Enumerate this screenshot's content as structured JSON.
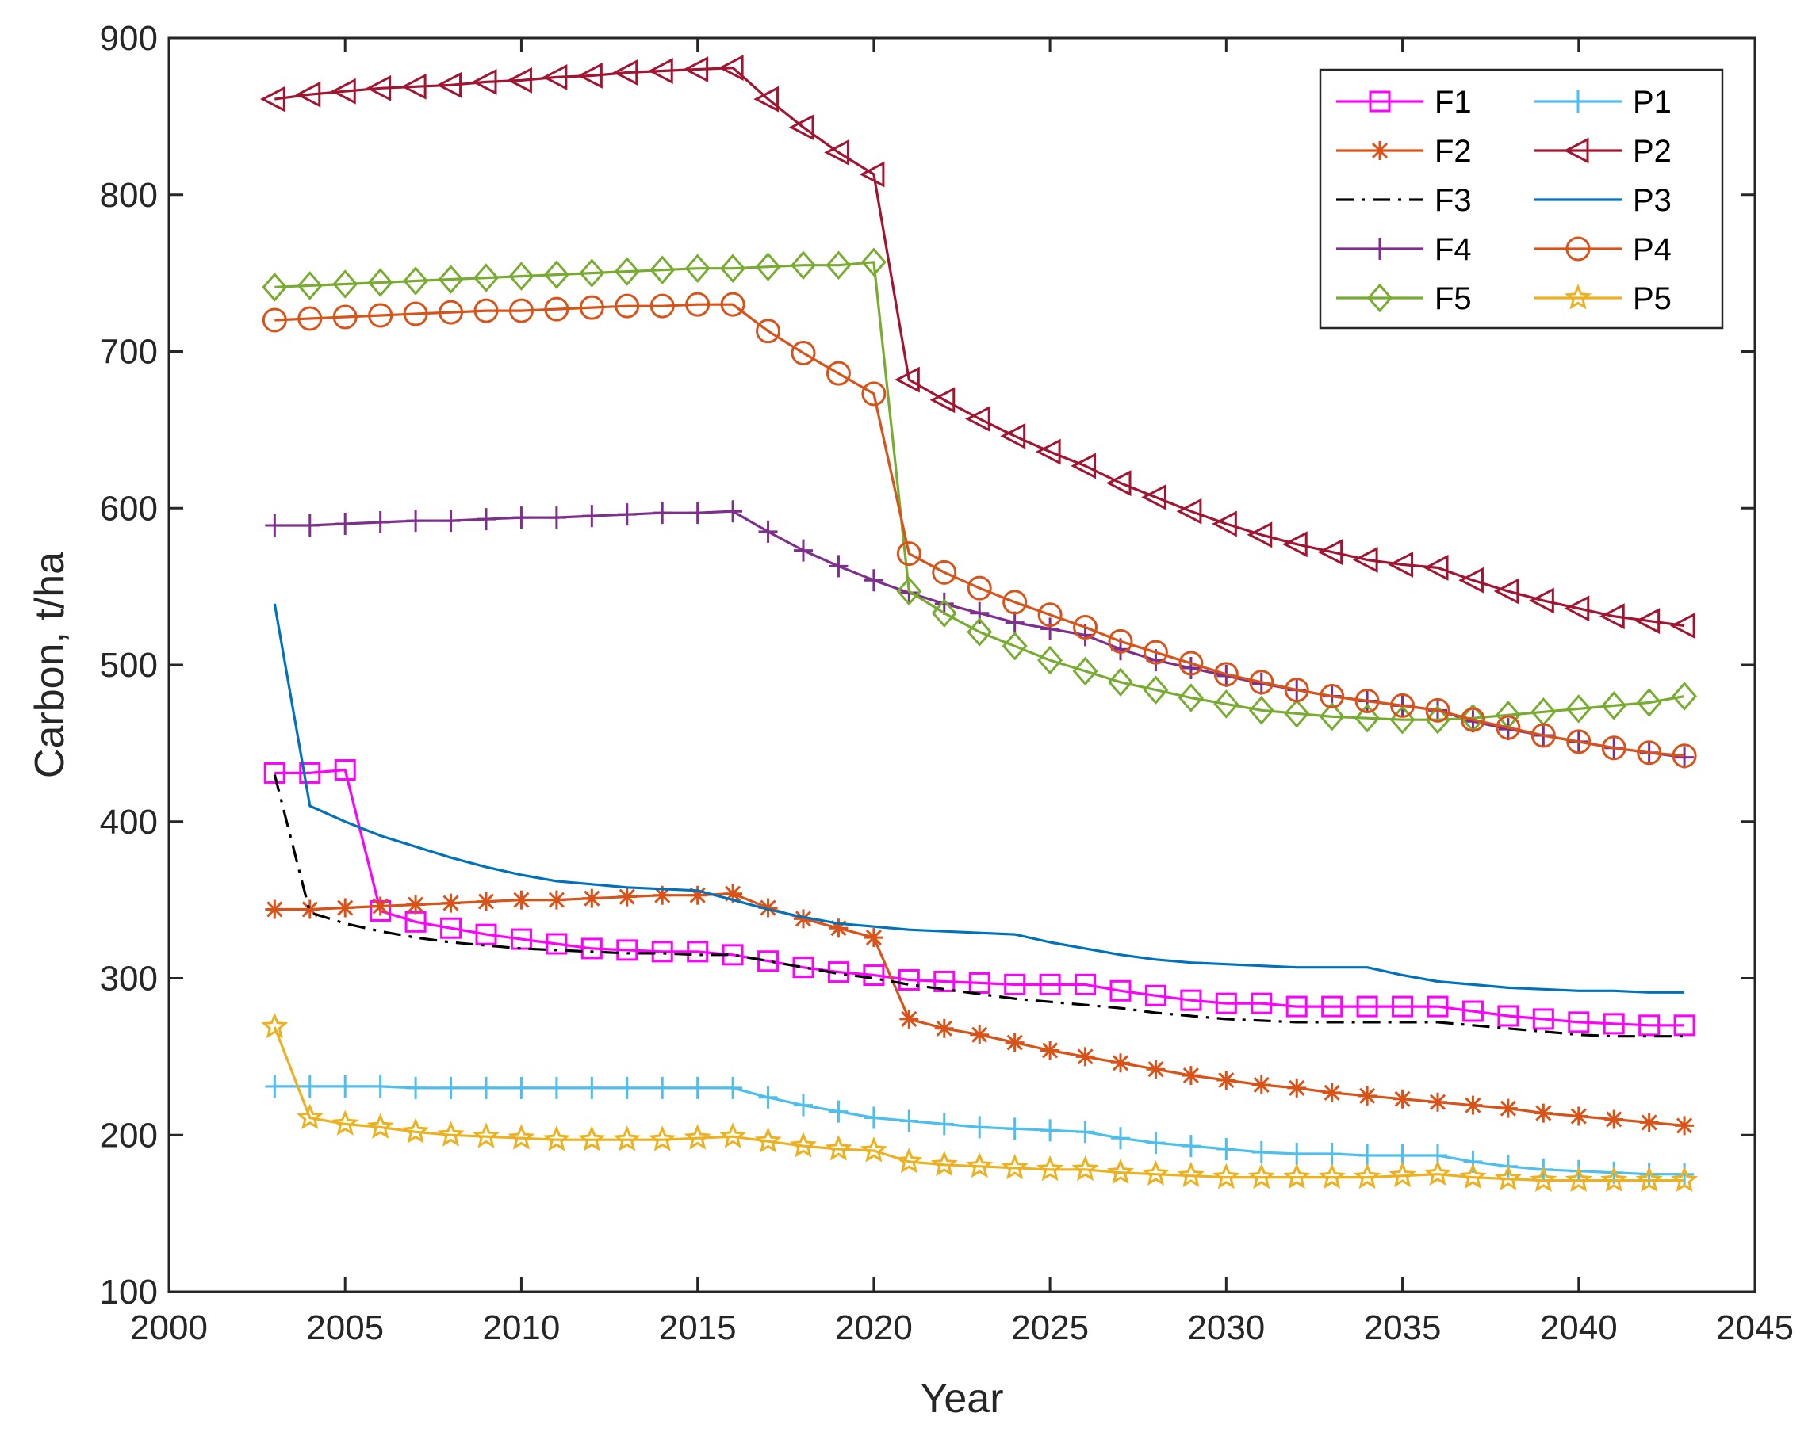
{
  "chart_data": {
    "type": "line",
    "title": "",
    "xlabel": "Year",
    "ylabel": "Carbon, t/ha",
    "xlim": [
      2000,
      2045
    ],
    "ylim": [
      100,
      900
    ],
    "xticks": [
      2000,
      2005,
      2010,
      2015,
      2020,
      2025,
      2030,
      2035,
      2040,
      2045
    ],
    "yticks": [
      100,
      200,
      300,
      400,
      500,
      600,
      700,
      800,
      900
    ],
    "grid": false,
    "legend_location": "top-right",
    "legend_columns": 2,
    "x": [
      2003,
      2004,
      2005,
      2006,
      2007,
      2008,
      2009,
      2010,
      2011,
      2012,
      2013,
      2014,
      2015,
      2016,
      2017,
      2018,
      2019,
      2020,
      2021,
      2022,
      2023,
      2024,
      2025,
      2026,
      2027,
      2028,
      2029,
      2030,
      2031,
      2032,
      2033,
      2034,
      2035,
      2036,
      2037,
      2038,
      2039,
      2040,
      2041,
      2042,
      2043
    ],
    "series": [
      {
        "name": "F1",
        "color": "#ff00ff",
        "marker": "square",
        "dash": "solid",
        "values": [
          431,
          431,
          433,
          343,
          336,
          332,
          328,
          325,
          322,
          319,
          318,
          317,
          317,
          315,
          311,
          307,
          304,
          302,
          299,
          298,
          297,
          296,
          296,
          296,
          292,
          289,
          286,
          284,
          284,
          282,
          282,
          282,
          282,
          282,
          279,
          276,
          274,
          272,
          271,
          270,
          270
        ]
      },
      {
        "name": "F2",
        "color": "#d95319",
        "marker": "asterisk",
        "dash": "solid",
        "values": [
          344,
          344,
          345,
          346,
          347,
          348,
          349,
          350,
          350,
          351,
          352,
          353,
          353,
          354,
          345,
          338,
          332,
          326,
          274,
          268,
          264,
          259,
          254,
          250,
          246,
          242,
          238,
          235,
          232,
          230,
          227,
          225,
          223,
          221,
          219,
          217,
          214,
          212,
          210,
          208,
          206
        ]
      },
      {
        "name": "F3",
        "color": "#000000",
        "marker": "none",
        "dash": "dashdot",
        "values": [
          430,
          342,
          335,
          330,
          326,
          323,
          321,
          319,
          318,
          317,
          316,
          316,
          315,
          315,
          311,
          307,
          303,
          300,
          296,
          293,
          290,
          287,
          285,
          283,
          281,
          278,
          276,
          274,
          273,
          272,
          272,
          272,
          272,
          272,
          270,
          268,
          266,
          264,
          263,
          263,
          263
        ]
      },
      {
        "name": "F4",
        "color": "#7e2f8e",
        "marker": "plus",
        "dash": "solid",
        "values": [
          589,
          589,
          590,
          591,
          592,
          592,
          593,
          594,
          594,
          595,
          596,
          597,
          597,
          598,
          585,
          573,
          563,
          554,
          546,
          539,
          533,
          527,
          523,
          519,
          510,
          503,
          498,
          493,
          488,
          484,
          480,
          477,
          474,
          471,
          464,
          459,
          455,
          451,
          447,
          444,
          441
        ]
      },
      {
        "name": "F5",
        "color": "#77ac30",
        "marker": "diamond",
        "dash": "solid",
        "values": [
          741,
          742,
          743,
          744,
          745,
          746,
          747,
          748,
          749,
          750,
          751,
          752,
          753,
          753,
          754,
          755,
          755,
          757,
          547,
          533,
          521,
          512,
          503,
          496,
          489,
          484,
          479,
          475,
          471,
          469,
          467,
          466,
          465,
          465,
          466,
          468,
          470,
          472,
          474,
          476,
          480
        ]
      },
      {
        "name": "P1",
        "color": "#4dbeee",
        "marker": "plus",
        "dash": "solid",
        "values": [
          231,
          231,
          231,
          231,
          230,
          230,
          230,
          230,
          230,
          230,
          230,
          230,
          230,
          230,
          224,
          219,
          215,
          211,
          209,
          207,
          205,
          204,
          203,
          202,
          198,
          195,
          193,
          191,
          189,
          188,
          188,
          187,
          187,
          187,
          183,
          180,
          178,
          177,
          176,
          175,
          175
        ]
      },
      {
        "name": "P2",
        "color": "#a2142f",
        "marker": "triangle-left",
        "dash": "solid",
        "values": [
          861,
          864,
          866,
          868,
          869,
          870,
          872,
          873,
          875,
          876,
          878,
          879,
          880,
          881,
          861,
          843,
          827,
          813,
          682,
          669,
          657,
          646,
          636,
          627,
          616,
          607,
          598,
          590,
          583,
          577,
          572,
          567,
          564,
          562,
          554,
          547,
          541,
          536,
          531,
          528,
          525
        ]
      },
      {
        "name": "P3",
        "color": "#0072bd",
        "marker": "none",
        "dash": "solid",
        "values": [
          539,
          410,
          400,
          391,
          384,
          377,
          371,
          366,
          362,
          360,
          358,
          357,
          356,
          350,
          344,
          339,
          335,
          333,
          331,
          330,
          329,
          328,
          323,
          319,
          315,
          312,
          310,
          309,
          308,
          307,
          307,
          307,
          302,
          298,
          296,
          294,
          293,
          292,
          292,
          291,
          291
        ]
      },
      {
        "name": "P4",
        "color": "#d95319",
        "marker": "circle",
        "dash": "solid",
        "values": [
          720,
          721,
          722,
          723,
          724,
          725,
          726,
          726,
          727,
          728,
          729,
          729,
          730,
          730,
          713,
          699,
          686,
          673,
          571,
          559,
          549,
          540,
          532,
          524,
          515,
          508,
          501,
          494,
          489,
          484,
          480,
          477,
          474,
          471,
          465,
          460,
          455,
          451,
          447,
          444,
          442
        ]
      },
      {
        "name": "P5",
        "color": "#edb120",
        "marker": "star",
        "dash": "solid",
        "values": [
          269,
          211,
          207,
          205,
          202,
          200,
          199,
          198,
          197,
          197,
          197,
          197,
          198,
          199,
          196,
          193,
          191,
          190,
          183,
          181,
          180,
          179,
          178,
          178,
          176,
          175,
          174,
          173,
          173,
          173,
          173,
          173,
          174,
          175,
          173,
          172,
          171,
          171,
          171,
          171,
          171
        ]
      }
    ]
  }
}
